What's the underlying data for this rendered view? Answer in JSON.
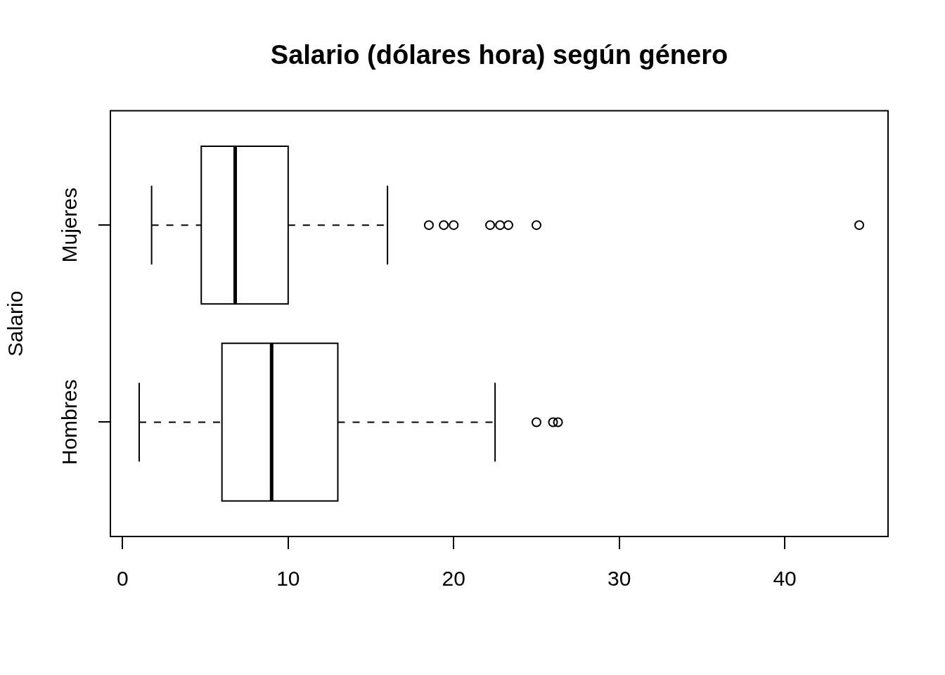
{
  "chart_data": {
    "type": "box",
    "orientation": "horizontal",
    "title": "Salario (dólares hora) según género",
    "ylabel": "Salario",
    "categories": [
      "Mujeres",
      "Hombres"
    ],
    "boxes": [
      {
        "low": 1.75,
        "q1": 4.75,
        "median": 6.8,
        "q3": 10.0,
        "high": 16.0,
        "outliers": [
          18.5,
          19.4,
          20.0,
          22.2,
          22.8,
          23.3,
          25.0,
          44.5
        ]
      },
      {
        "low": 1.0,
        "q1": 6.0,
        "median": 9.0,
        "q3": 13.0,
        "high": 22.5,
        "outliers": [
          25.0,
          26.0,
          26.3
        ]
      }
    ],
    "color": "#000000",
    "xlim": [
      -0.74,
      46.24
    ],
    "xticks": [
      0,
      10,
      20,
      30,
      40
    ]
  }
}
